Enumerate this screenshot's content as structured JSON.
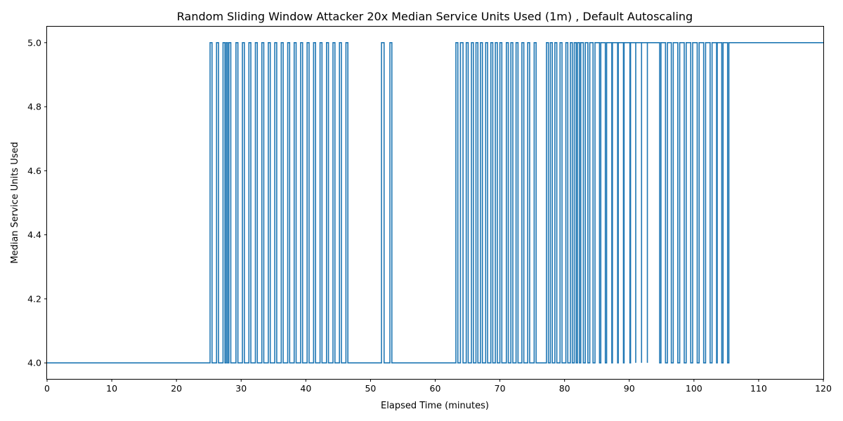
{
  "chart_data": {
    "type": "line",
    "title": "Random Sliding Window Attacker 20x Median Service Units Used (1m) , Default Autoscaling",
    "xlabel": "Elapsed Time (minutes)",
    "ylabel": "Median Service Units Used",
    "xlim": [
      0,
      120
    ],
    "ylim": [
      3.95,
      5.05
    ],
    "xticks": [
      0,
      10,
      20,
      30,
      40,
      50,
      60,
      70,
      80,
      90,
      100,
      110,
      120
    ],
    "yticks": [
      4.0,
      4.2,
      4.4,
      4.6,
      4.8,
      5.0
    ],
    "ytick_labels": [
      "4.0",
      "4.2",
      "4.4",
      "4.6",
      "4.8",
      "5.0"
    ],
    "grid": false,
    "legend": "none",
    "color": "#1f77b4",
    "series": [
      {
        "pulses_at_5": [
          [
            25.2,
            25.5
          ],
          [
            26.2,
            26.5
          ],
          [
            27.2,
            27.5
          ],
          [
            27.7,
            27.9
          ],
          [
            28.1,
            28.4
          ],
          [
            29.2,
            29.5
          ],
          [
            30.2,
            30.5
          ],
          [
            31.2,
            31.5
          ],
          [
            32.2,
            32.5
          ],
          [
            33.2,
            33.5
          ],
          [
            34.2,
            34.5
          ],
          [
            35.2,
            35.5
          ],
          [
            36.2,
            36.5
          ],
          [
            37.2,
            37.5
          ],
          [
            38.2,
            38.5
          ],
          [
            39.2,
            39.5
          ],
          [
            40.2,
            40.5
          ],
          [
            41.2,
            41.5
          ],
          [
            42.2,
            42.5
          ],
          [
            43.2,
            43.5
          ],
          [
            44.2,
            44.5
          ],
          [
            45.2,
            45.5
          ],
          [
            46.2,
            46.5
          ],
          [
            51.7,
            52.1
          ],
          [
            53.0,
            53.3
          ],
          [
            63.2,
            63.5
          ],
          [
            63.9,
            64.3
          ],
          [
            64.8,
            65.1
          ],
          [
            65.6,
            65.9
          ],
          [
            66.3,
            66.6
          ],
          [
            67.0,
            67.3
          ],
          [
            67.8,
            68.1
          ],
          [
            68.6,
            68.9
          ],
          [
            69.3,
            69.6
          ],
          [
            70.0,
            70.3
          ],
          [
            71.0,
            71.3
          ],
          [
            71.7,
            72.0
          ],
          [
            72.5,
            72.8
          ],
          [
            73.4,
            73.7
          ],
          [
            74.3,
            74.6
          ],
          [
            75.3,
            75.6
          ],
          [
            77.2,
            77.5
          ],
          [
            77.8,
            78.1
          ],
          [
            78.5,
            78.8
          ],
          [
            79.3,
            79.6
          ],
          [
            80.2,
            80.5
          ],
          [
            80.9,
            81.2
          ],
          [
            81.5,
            81.8
          ],
          [
            82.0,
            82.3
          ],
          [
            82.5,
            82.9
          ],
          [
            83.2,
            83.6
          ],
          [
            83.9,
            84.4
          ],
          [
            84.7,
            85.4
          ],
          [
            85.6,
            86.3
          ],
          [
            86.5,
            87.3
          ],
          [
            87.4,
            88.2
          ],
          [
            88.3,
            89.1
          ],
          [
            89.2,
            90.1
          ],
          [
            90.2,
            91.0
          ],
          [
            91.0,
            91.9
          ],
          [
            91.9,
            92.8
          ],
          [
            92.8,
            94.7
          ],
          [
            94.9,
            95.6
          ],
          [
            95.9,
            96.5
          ],
          [
            96.8,
            97.5
          ],
          [
            97.8,
            98.5
          ],
          [
            98.8,
            99.5
          ],
          [
            99.8,
            100.5
          ],
          [
            100.8,
            101.5
          ],
          [
            101.8,
            102.5
          ],
          [
            102.8,
            103.5
          ],
          [
            103.6,
            104.3
          ],
          [
            104.5,
            105.2
          ],
          [
            105.4,
            120.0
          ]
        ],
        "low_value": 4.0,
        "high_value": 5.0
      }
    ]
  }
}
